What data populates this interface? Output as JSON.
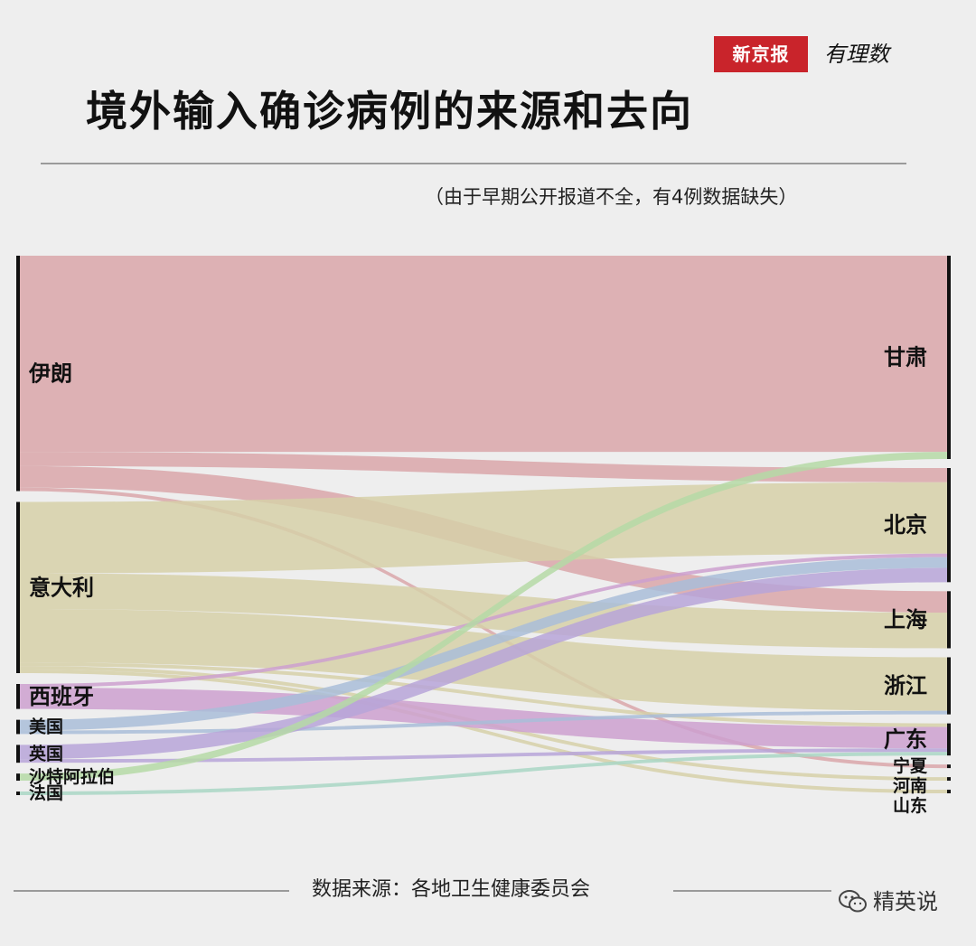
{
  "header": {
    "brand": "新京报",
    "brand_sub": "有理数",
    "title": "境外输入确诊病例的来源和去向",
    "subtitle": "（由于早期公开报道不全，有4例数据缺失）"
  },
  "footer": {
    "source": "数据来源：各地卫生健康委员会",
    "watermark": "精英说"
  },
  "colors": {
    "伊朗": "#d9a6a9",
    "意大利": "#d6d0a8",
    "西班牙": "#cda0cf",
    "美国": "#a9bdd8",
    "英国": "#b7a4d8",
    "沙特阿拉伯": "#b5d9a6",
    "法国": "#a9d6c4",
    "node_bar": "#111111",
    "background": "#eeeeee"
  },
  "chart_data": {
    "type": "sankey",
    "title": "境外输入确诊病例的来源和去向",
    "subtitle": "（由于早期公开报道不全，有4例数据缺失）",
    "sources": [
      "伊朗",
      "意大利",
      "西班牙",
      "美国",
      "英国",
      "沙特阿拉伯",
      "法国"
    ],
    "targets": [
      "甘肃",
      "北京",
      "上海",
      "浙江",
      "广东",
      "宁夏",
      "河南",
      "山东"
    ],
    "links": [
      {
        "source": "伊朗",
        "target": "甘肃",
        "value": 55
      },
      {
        "source": "伊朗",
        "target": "北京",
        "value": 4
      },
      {
        "source": "伊朗",
        "target": "上海",
        "value": 6
      },
      {
        "source": "伊朗",
        "target": "宁夏",
        "value": 1
      },
      {
        "source": "意大利",
        "target": "北京",
        "value": 20
      },
      {
        "source": "意大利",
        "target": "上海",
        "value": 10
      },
      {
        "source": "意大利",
        "target": "浙江",
        "value": 15
      },
      {
        "source": "意大利",
        "target": "河南",
        "value": 1
      },
      {
        "source": "意大利",
        "target": "山东",
        "value": 1
      },
      {
        "source": "意大利",
        "target": "广东",
        "value": 1
      },
      {
        "source": "西班牙",
        "target": "北京",
        "value": 1
      },
      {
        "source": "西班牙",
        "target": "广东",
        "value": 6
      },
      {
        "source": "美国",
        "target": "北京",
        "value": 3
      },
      {
        "source": "美国",
        "target": "浙江",
        "value": 1
      },
      {
        "source": "英国",
        "target": "北京",
        "value": 4
      },
      {
        "source": "英国",
        "target": "广东",
        "value": 1
      },
      {
        "source": "沙特阿拉伯",
        "target": "甘肃",
        "value": 2
      },
      {
        "source": "法国",
        "target": "广东",
        "value": 1
      }
    ]
  }
}
